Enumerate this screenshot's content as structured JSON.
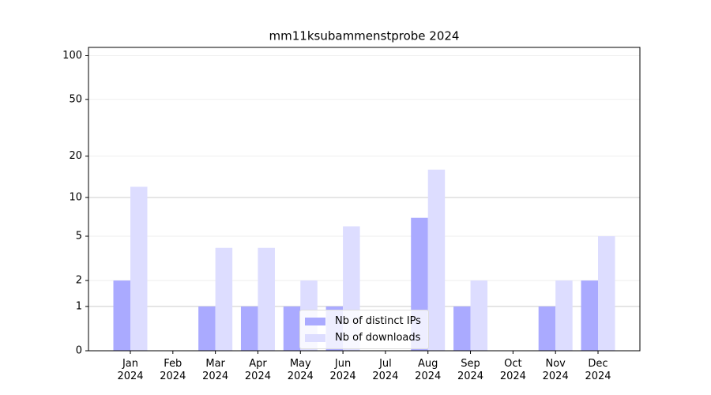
{
  "chart_data": {
    "type": "bar",
    "title": "mm11ksubammenstprobe 2024",
    "categories": [
      "Jan 2024",
      "Feb 2024",
      "Mar 2024",
      "Apr 2024",
      "May 2024",
      "Jun 2024",
      "Jul 2024",
      "Aug 2024",
      "Sep 2024",
      "Oct 2024",
      "Nov 2024",
      "Dec 2024"
    ],
    "series": [
      {
        "name": "Nb of distinct IPs",
        "color": "#aaaaff",
        "values": [
          2,
          0,
          1,
          1,
          1,
          1,
          0,
          7,
          1,
          0,
          1,
          2
        ]
      },
      {
        "name": "Nb of downloads",
        "color": "#ddddff",
        "values": [
          12,
          0,
          4,
          4,
          2,
          6,
          0,
          16,
          2,
          0,
          2,
          5
        ]
      }
    ],
    "yscale": "log1p",
    "ylim": [
      0,
      114
    ],
    "yticks": [
      0,
      1,
      2,
      5,
      10,
      20,
      50,
      100
    ],
    "grid": true,
    "legend": "lower center"
  }
}
